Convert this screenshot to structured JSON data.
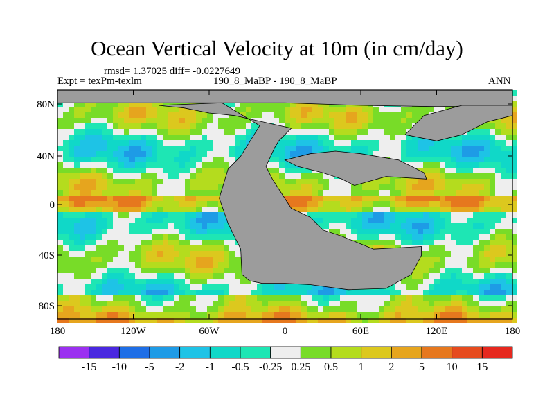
{
  "title": "Ocean Vertical Velocity at 10m (in cm/day)",
  "stats_line": "rmsd= 1.37025 diff= -0.0227649",
  "expt_label": "Expt = texPm-texlm",
  "case_label": "190_8_MaBP - 190_8_MaBP",
  "season_label": "ANN",
  "chart_data": {
    "type": "heatmap",
    "variable": "Ocean Vertical Velocity at 10m",
    "units": "cm/day",
    "x_ticks": [
      "180",
      "120W",
      "60W",
      "0",
      "60E",
      "120E",
      "180"
    ],
    "y_ticks": [
      "80N",
      "40N",
      "0",
      "40S",
      "80S"
    ],
    "xlim": [
      -180,
      180
    ],
    "ylim": [
      -90,
      90
    ],
    "colorbar": {
      "labels": [
        "-15",
        "-10",
        "-5",
        "-2",
        "-1",
        "-0.5",
        "-0.25",
        "0.25",
        "0.5",
        "1",
        "2",
        "5",
        "10",
        "15"
      ],
      "colors": [
        "#9b30f0",
        "#4a28e0",
        "#1e6ee6",
        "#1e9be6",
        "#1ec3e6",
        "#10d8c8",
        "#1ee6b4",
        "#eeeeee",
        "#78dc28",
        "#b4dc1e",
        "#dcc81e",
        "#e6a51e",
        "#e6781e",
        "#e64b1e",
        "#e6281e"
      ]
    },
    "land_color": "#9c9c9c"
  }
}
